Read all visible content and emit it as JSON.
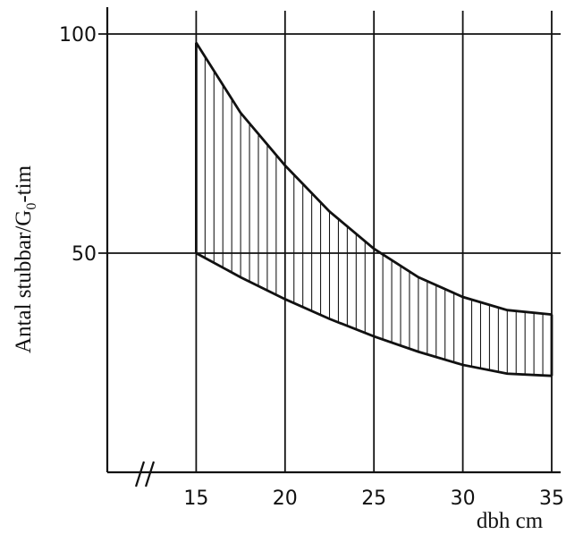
{
  "chart_data": {
    "type": "area",
    "title": "",
    "xlabel": "dbh cm",
    "ylabel": {
      "text": "Antal stubbar/G",
      "subscript": "0",
      "suffix": "-tim"
    },
    "x_ticks": [
      15,
      20,
      25,
      30,
      35
    ],
    "y_ticks": [
      100,
      50
    ],
    "y_tick_labels": [
      "100",
      "50"
    ],
    "xlim": [
      10,
      35
    ],
    "ylim": [
      0,
      100
    ],
    "grid": true,
    "axis_break": {
      "axis": "x",
      "symbol": "//"
    },
    "series": [
      {
        "x": [
          15,
          17.5,
          20,
          22.5,
          25,
          27.5,
          30,
          32.5,
          35
        ],
        "values": [
          98,
          82,
          70,
          59.5,
          51,
          44.5,
          40,
          37,
          36
        ]
      },
      {
        "x": [
          15,
          17.5,
          20,
          22.5,
          25,
          27.5,
          30,
          32.5,
          35
        ],
        "values": [
          50,
          44.5,
          39.5,
          35,
          31,
          27.5,
          24.5,
          22.5,
          22
        ]
      }
    ],
    "band": {
      "between": [
        0,
        1
      ],
      "fill": "vertical-hatch"
    },
    "colors": {
      "ink": "#111111",
      "background": "#ffffff"
    }
  }
}
